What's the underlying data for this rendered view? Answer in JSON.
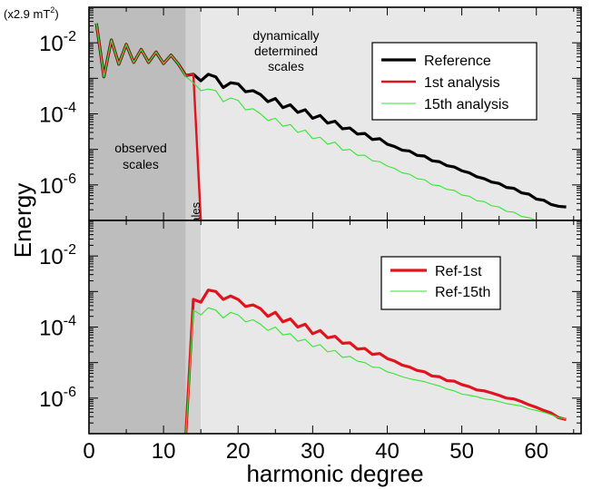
{
  "chart_data": [
    {
      "type": "line",
      "panel": "top",
      "y_scale": "log",
      "xlim": [
        0,
        66
      ],
      "ylim": [
        1e-07,
        0.1
      ],
      "unit_label": "(x2.9 mT²)",
      "ylabel": "Energy",
      "xlabel": "",
      "ytick_labels": [
        {
          "base": "10",
          "exp": "-2",
          "value": 0.01
        },
        {
          "base": "10",
          "exp": "-4",
          "value": 0.0001
        },
        {
          "base": "10",
          "exp": "-6",
          "value": 1e-06
        }
      ],
      "regions": [
        {
          "label_lines": [
            "observed",
            "scales"
          ],
          "x": [
            0,
            13
          ],
          "color": "#bdbdbd"
        },
        {
          "label_lines": [
            "Estimated scales"
          ],
          "x": [
            13,
            15
          ],
          "color": "#d2d2d2",
          "vertical_label": true
        },
        {
          "label_lines": [
            "dynamically",
            "determined",
            "scales"
          ],
          "x": [
            15,
            66
          ],
          "color": "#e8e8e8"
        }
      ],
      "legend_position": "top-right",
      "series": [
        {
          "name": "Reference",
          "color": "#000000",
          "style": "thick",
          "x": [
            1,
            2,
            3,
            4,
            5,
            6,
            7,
            8,
            9,
            10,
            11,
            12,
            13,
            14,
            15,
            16,
            17,
            18,
            19,
            20,
            21,
            22,
            23,
            24,
            25,
            26,
            27,
            28,
            29,
            30,
            31,
            32,
            33,
            34,
            35,
            36,
            37,
            38,
            39,
            40,
            41,
            42,
            43,
            44,
            45,
            46,
            47,
            48,
            49,
            50,
            51,
            52,
            53,
            54,
            55,
            56,
            57,
            58,
            59,
            60,
            61,
            62,
            63,
            64
          ],
          "values": [
            0.035,
            0.0011,
            0.012,
            0.0025,
            0.009,
            0.0028,
            0.0065,
            0.0028,
            0.0055,
            0.0026,
            0.0045,
            0.0025,
            0.0012,
            0.0013,
            0.00085,
            0.0013,
            0.0011,
            0.00055,
            0.00075,
            0.0007,
            0.00042,
            0.00045,
            0.00035,
            0.00022,
            0.00027,
            0.00015,
            0.00018,
            0.00011,
            0.00013,
            7.5e-05,
            9e-05,
            5.5e-05,
            6.2e-05,
            3.8e-05,
            4e-05,
            2.7e-05,
            2.8e-05,
            1.9e-05,
            2e-05,
            1.4e-05,
            1.2e-05,
            9.5e-06,
            9e-06,
            6.8e-06,
            6.5e-06,
            4.8e-06,
            4.5e-06,
            3.5e-06,
            3.2e-06,
            2.5e-06,
            2.2e-06,
            1.7e-06,
            1.5e-06,
            1.2e-06,
            1.1e-06,
            8.5e-07,
            8e-07,
            6e-07,
            5.5e-07,
            4e-07,
            3.7e-07,
            2.8e-07,
            2.5e-07,
            2.4e-07
          ]
        },
        {
          "name": "1st analysis",
          "color": "#e0141e",
          "style": "normal",
          "x": [
            1,
            2,
            3,
            4,
            5,
            6,
            7,
            8,
            9,
            10,
            11,
            12,
            13,
            14,
            15
          ],
          "values": [
            0.035,
            0.0011,
            0.012,
            0.0025,
            0.009,
            0.0028,
            0.0065,
            0.0028,
            0.0055,
            0.0026,
            0.0045,
            0.0025,
            0.0012,
            0.0013,
            1e-07
          ]
        },
        {
          "name": "15th analysis",
          "color": "#33e633",
          "style": "thin",
          "x": [
            1,
            2,
            3,
            4,
            5,
            6,
            7,
            8,
            9,
            10,
            11,
            12,
            13,
            14,
            15,
            16,
            17,
            18,
            19,
            20,
            21,
            22,
            23,
            24,
            25,
            26,
            27,
            28,
            29,
            30,
            31,
            32,
            33,
            34,
            35,
            36,
            37,
            38,
            39,
            40,
            41,
            42,
            43,
            44,
            45,
            46,
            47,
            48,
            49,
            50,
            51,
            52,
            53,
            54,
            55,
            56,
            57,
            58,
            59,
            60,
            61,
            62,
            63,
            64
          ],
          "values": [
            0.035,
            0.0011,
            0.012,
            0.0025,
            0.009,
            0.0028,
            0.0065,
            0.0028,
            0.0055,
            0.0026,
            0.0045,
            0.0025,
            0.0011,
            0.00075,
            0.00045,
            0.0005,
            0.00045,
            0.00022,
            0.00028,
            0.00024,
            0.00013,
            0.00014,
            0.0001,
            6.5e-05,
            7.5e-05,
            4.5e-05,
            5e-05,
            3e-05,
            3.5e-05,
            2e-05,
            2.2e-05,
            1.4e-05,
            1.6e-05,
            9.5e-06,
            1e-05,
            6.8e-06,
            6.8e-06,
            4.8e-06,
            4.5e-06,
            3.4e-06,
            2.9e-06,
            2.2e-06,
            2e-06,
            1.5e-06,
            1.4e-06,
            1e-06,
            9.5e-07,
            7.5e-07,
            7e-07,
            5.2e-07,
            4.8e-07,
            3.6e-07,
            3.4e-07,
            2.6e-07,
            2.4e-07,
            1.8e-07,
            1.7e-07,
            1.3e-07,
            1.2e-07,
            1e-07,
            9.5e-08,
            8e-08,
            7.5e-08,
            7e-08
          ]
        }
      ]
    },
    {
      "type": "line",
      "panel": "bottom",
      "y_scale": "log",
      "xlim": [
        0,
        66
      ],
      "ylim": [
        1e-07,
        0.1
      ],
      "xlabel": "harmonic degree",
      "xtick_labels": [
        "0",
        "10",
        "20",
        "30",
        "40",
        "50",
        "60"
      ],
      "xticks": [
        0,
        10,
        20,
        30,
        40,
        50,
        60
      ],
      "ytick_labels": [
        {
          "base": "10",
          "exp": "-2",
          "value": 0.01
        },
        {
          "base": "10",
          "exp": "-4",
          "value": 0.0001
        },
        {
          "base": "10",
          "exp": "-6",
          "value": 1e-06
        }
      ],
      "legend_position": "right",
      "series": [
        {
          "name": "Ref-1st",
          "color": "#e0141e",
          "style": "thick",
          "x": [
            13,
            14,
            15,
            16,
            17,
            18,
            19,
            20,
            21,
            22,
            23,
            24,
            25,
            26,
            27,
            28,
            29,
            30,
            31,
            32,
            33,
            34,
            35,
            36,
            37,
            38,
            39,
            40,
            41,
            42,
            43,
            44,
            45,
            46,
            47,
            48,
            49,
            50,
            51,
            52,
            53,
            54,
            55,
            56,
            57,
            58,
            59,
            60,
            61,
            62,
            63,
            64
          ],
          "values": [
            1e-08,
            0.0006,
            0.0005,
            0.0011,
            0.001,
            0.0006,
            0.00075,
            0.0006,
            0.00038,
            0.00042,
            0.00033,
            0.0002,
            0.00026,
            0.00014,
            0.00017,
            0.0001,
            0.00012,
            6.5e-05,
            8e-05,
            5e-05,
            5.5e-05,
            3.5e-05,
            3.6e-05,
            2.4e-05,
            2.5e-05,
            1.7e-05,
            1.8e-05,
            1.3e-05,
            1.1e-05,
            8.5e-06,
            7.5e-06,
            6e-06,
            5.5e-06,
            4.2e-06,
            4e-06,
            3.1e-06,
            3e-06,
            2.4e-06,
            2.1e-06,
            1.7e-06,
            1.6e-06,
            1.4e-06,
            1.2e-06,
            1e-06,
            9.5e-07,
            8e-07,
            6.5e-07,
            5.5e-07,
            4.5e-07,
            3.8e-07,
            2.8e-07,
            2.5e-07
          ]
        },
        {
          "name": "Ref-15th",
          "color": "#33e633",
          "style": "thin",
          "x": [
            13,
            14,
            15,
            16,
            17,
            18,
            19,
            20,
            21,
            22,
            23,
            24,
            25,
            26,
            27,
            28,
            29,
            30,
            31,
            32,
            33,
            34,
            35,
            36,
            37,
            38,
            39,
            40,
            41,
            42,
            43,
            44,
            45,
            46,
            47,
            48,
            49,
            50,
            51,
            52,
            53,
            54,
            55,
            56,
            57,
            58,
            59,
            60,
            61,
            62,
            63,
            64
          ],
          "values": [
            1e-08,
            0.0003,
            0.00022,
            0.00035,
            0.0003,
            0.00018,
            0.00026,
            0.00022,
            0.00014,
            0.00016,
            0.00012,
            8e-05,
            0.0001,
            6e-05,
            6.5e-05,
            4e-05,
            4.5e-05,
            2.8e-05,
            3.2e-05,
            2e-05,
            2.2e-05,
            1.4e-05,
            1.5e-05,
            1.1e-05,
            1e-05,
            7.5e-06,
            7.2e-06,
            5.5e-06,
            4.8e-06,
            4e-06,
            3.5e-06,
            3.2e-06,
            2.9e-06,
            2.5e-06,
            2.2e-06,
            1.8e-06,
            1.6e-06,
            1.3e-06,
            1.2e-06,
            1.1e-06,
            9.5e-07,
            9e-07,
            8e-07,
            7e-07,
            6.5e-07,
            6e-07,
            5e-07,
            4.5e-07,
            4e-07,
            3.4e-07,
            2.8e-07,
            2.6e-07
          ]
        }
      ]
    }
  ]
}
